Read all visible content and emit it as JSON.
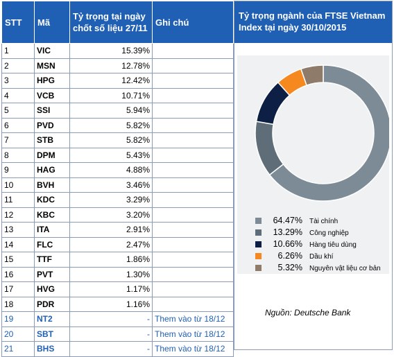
{
  "table": {
    "headers": {
      "stt": "STT",
      "ma": "Mã",
      "weight": "Tỷ trọng tại ngày chốt số liệu 27/11",
      "note": "Ghi chú"
    },
    "rows": [
      {
        "stt": "1",
        "ma": "VIC",
        "weight": "15.39%",
        "note": ""
      },
      {
        "stt": "2",
        "ma": "MSN",
        "weight": "12.78%",
        "note": ""
      },
      {
        "stt": "3",
        "ma": "HPG",
        "weight": "12.42%",
        "note": ""
      },
      {
        "stt": "4",
        "ma": "VCB",
        "weight": "10.71%",
        "note": ""
      },
      {
        "stt": "5",
        "ma": "SSI",
        "weight": "5.94%",
        "note": ""
      },
      {
        "stt": "6",
        "ma": "PVD",
        "weight": "5.82%",
        "note": ""
      },
      {
        "stt": "7",
        "ma": "STB",
        "weight": "5.82%",
        "note": ""
      },
      {
        "stt": "8",
        "ma": "DPM",
        "weight": "5.43%",
        "note": ""
      },
      {
        "stt": "9",
        "ma": "HAG",
        "weight": "4.88%",
        "note": ""
      },
      {
        "stt": "10",
        "ma": "BVH",
        "weight": "3.46%",
        "note": ""
      },
      {
        "stt": "11",
        "ma": "KDC",
        "weight": "3.29%",
        "note": ""
      },
      {
        "stt": "12",
        "ma": "KBC",
        "weight": "3.20%",
        "note": ""
      },
      {
        "stt": "13",
        "ma": "ITA",
        "weight": "2.91%",
        "note": ""
      },
      {
        "stt": "14",
        "ma": "FLC",
        "weight": "2.47%",
        "note": ""
      },
      {
        "stt": "15",
        "ma": "TTF",
        "weight": "1.86%",
        "note": ""
      },
      {
        "stt": "16",
        "ma": "PVT",
        "weight": "1.30%",
        "note": ""
      },
      {
        "stt": "17",
        "ma": "HVG",
        "weight": "1.17%",
        "note": ""
      },
      {
        "stt": "18",
        "ma": "PDR",
        "weight": "1.16%",
        "note": ""
      },
      {
        "stt": "19",
        "ma": "NT2",
        "weight": "-",
        "note": "Them vào từ 18/12",
        "added": true
      },
      {
        "stt": "20",
        "ma": "SBT",
        "weight": "-",
        "note": "Them vào từ 18/12",
        "added": true
      },
      {
        "stt": "21",
        "ma": "BHS",
        "weight": "-",
        "note": "Them vào từ 18/12",
        "added": true
      }
    ]
  },
  "chart_data": {
    "type": "pie",
    "donut": true,
    "title": "Tỷ trọng ngành của FTSE Vietnam Index tại ngày 30/10/2015",
    "categories": [
      "Tài chính",
      "Công nghiệp",
      "Hàng tiêu dùng",
      "Dầu khí",
      "Nguyên vật liệu cơ bản"
    ],
    "values": [
      64.47,
      13.29,
      10.66,
      6.26,
      5.32
    ],
    "value_labels": [
      "64.47%",
      "13.29%",
      "10.66%",
      "6.26%",
      "5.32%"
    ],
    "colors": [
      "#7d8b96",
      "#5f6d78",
      "#0d1f45",
      "#f5881f",
      "#8f7b6a"
    ],
    "legend": "bottom",
    "source": "Nguồn: Deutsche Bank"
  }
}
